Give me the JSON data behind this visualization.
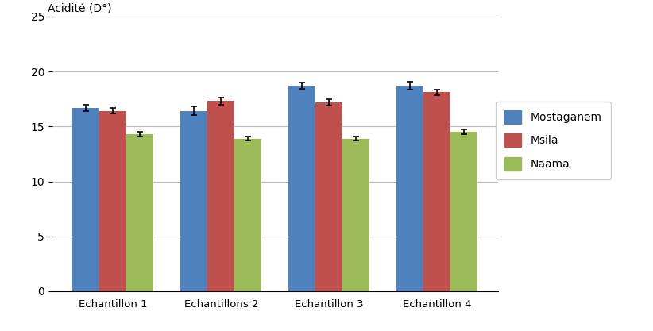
{
  "categories": [
    "Echantillon 1",
    "Echantillons 2",
    "Echantillon 3",
    "Echantillon 4"
  ],
  "series": {
    "Mostaganem": [
      16.7,
      16.4,
      18.7,
      18.7
    ],
    "Msila": [
      16.4,
      17.3,
      17.2,
      18.1
    ],
    "Naama": [
      14.3,
      13.9,
      13.9,
      14.5
    ]
  },
  "errors": {
    "Mostaganem": [
      0.3,
      0.4,
      0.3,
      0.35
    ],
    "Msila": [
      0.25,
      0.3,
      0.3,
      0.25
    ],
    "Naama": [
      0.2,
      0.15,
      0.15,
      0.2
    ]
  },
  "colors": {
    "Mostaganem": "#4F81BD",
    "Msila": "#C0504D",
    "Naama": "#9BBB59"
  },
  "ylabel": "Acidité (D°)",
  "ylim": [
    0,
    25
  ],
  "yticks": [
    0,
    5,
    10,
    15,
    20,
    25
  ],
  "bar_width": 0.25,
  "legend_labels": [
    "Mostaganem",
    "Msila",
    "Naama"
  ],
  "background_color": "#ffffff",
  "grid_color": "#bbbbbb"
}
